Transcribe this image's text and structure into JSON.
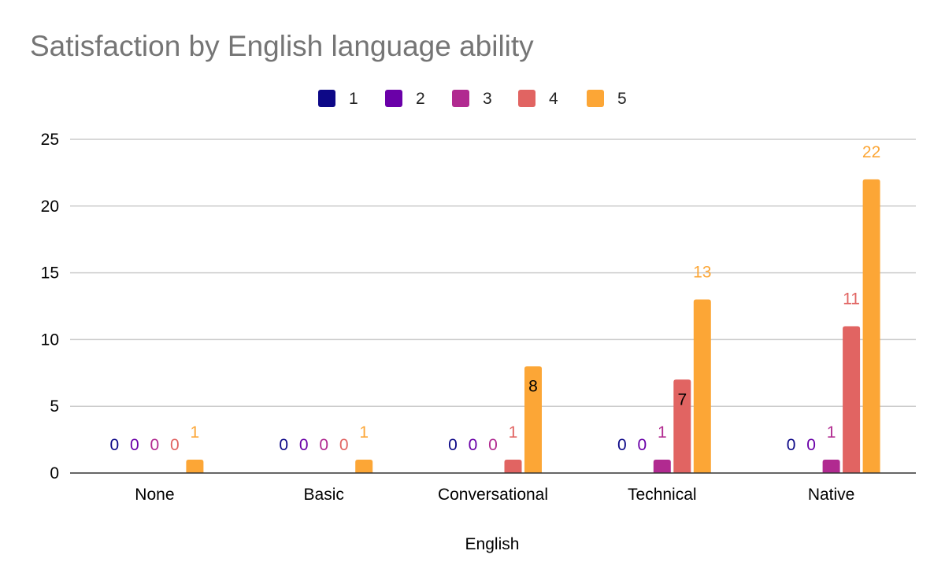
{
  "chart_data": {
    "type": "bar",
    "title": "Satisfaction by English language ability",
    "xlabel": "English",
    "ylabel": "",
    "ylim": [
      0,
      25
    ],
    "yticks": [
      0,
      5,
      10,
      15,
      20,
      25
    ],
    "categories": [
      "None",
      "Basic",
      "Conversational",
      "Technical",
      "Native"
    ],
    "series": [
      {
        "name": "1",
        "color": "#0d0887",
        "values": [
          0,
          0,
          0,
          0,
          0
        ]
      },
      {
        "name": "2",
        "color": "#6a00a8",
        "values": [
          0,
          0,
          0,
          0,
          0
        ]
      },
      {
        "name": "3",
        "color": "#b12a90",
        "values": [
          0,
          0,
          0,
          1,
          1
        ]
      },
      {
        "name": "4",
        "color": "#e16462",
        "values": [
          0,
          0,
          1,
          7,
          11
        ]
      },
      {
        "name": "5",
        "color": "#fca636",
        "values": [
          1,
          1,
          8,
          13,
          22
        ]
      }
    ],
    "data_label_overrides": [
      {
        "series": 4,
        "category": 2,
        "text": "8",
        "color": "#000000",
        "inside": true
      },
      {
        "series": 3,
        "category": 3,
        "text": "7",
        "color": "#000000",
        "inside": true
      }
    ],
    "legend_position": "top-center",
    "grid": true
  }
}
